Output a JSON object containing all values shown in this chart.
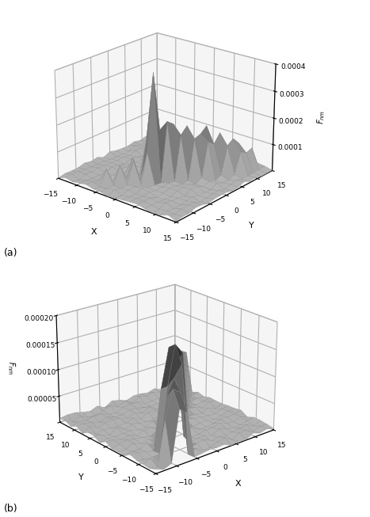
{
  "xlim": [
    -15,
    15
  ],
  "ylim": [
    -15,
    15
  ],
  "xlabel": "X",
  "ylabel": "Y",
  "zlim_a": [
    0,
    0.0004
  ],
  "zlim_b": [
    0.0,
    0.0002
  ],
  "zticks_a": [
    0.0001,
    0.0002,
    0.0003,
    0.0004
  ],
  "zticks_b": [
    5e-05,
    0.0001,
    0.00015,
    0.0002
  ],
  "grid_size": 17,
  "x_range": [
    -15,
    15
  ],
  "y_range": [
    -15,
    15
  ],
  "elev_a": 22,
  "azim_a": -50,
  "elev_b": 22,
  "azim_b": -130,
  "pane_color": [
    0.93,
    0.93,
    0.93,
    1.0
  ],
  "title_a": "(a)",
  "title_b": "(b)"
}
